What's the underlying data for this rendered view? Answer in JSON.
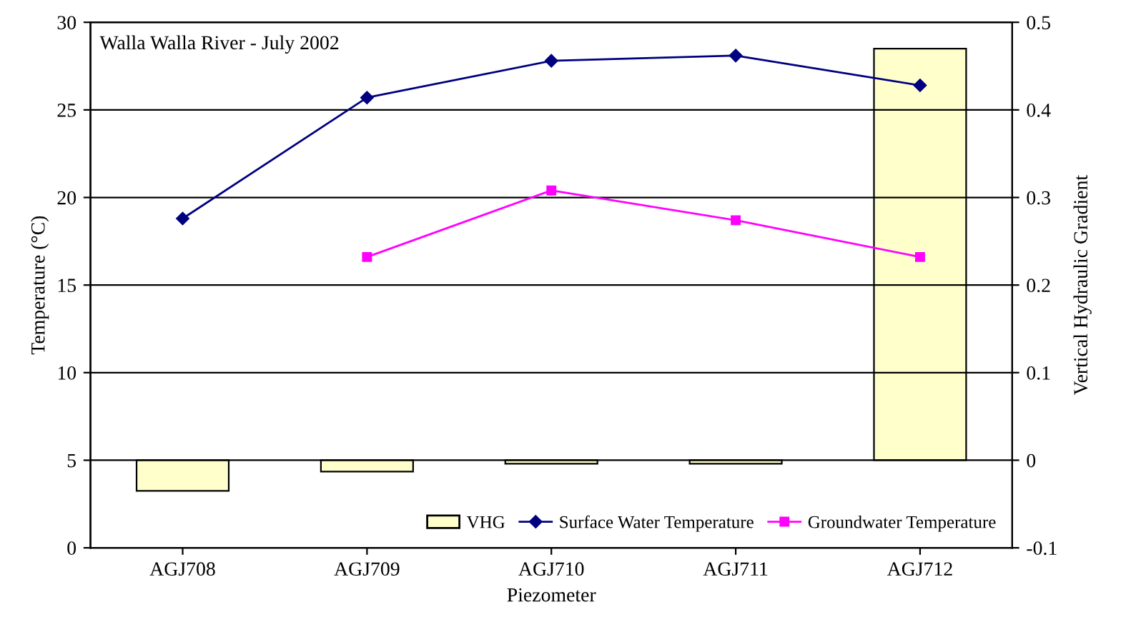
{
  "chart_data": {
    "type": "bar",
    "title": "Walla Walla River - July 2002",
    "xlabel": "Piezometer",
    "ylabel": "Temperature (°C)",
    "y2label": "Vertical Hydraulic Gradient",
    "categories": [
      "AGJ708",
      "AGJ709",
      "AGJ710",
      "AGJ711",
      "AGJ712"
    ],
    "series": [
      {
        "name": "VHG",
        "axis": "y2",
        "color": "#ffffcc",
        "values": [
          -0.035,
          -0.013,
          -0.004,
          -0.004,
          0.47
        ]
      },
      {
        "name": "Surface Water Temperature",
        "type": "line",
        "color": "#000080",
        "marker": "diamond",
        "values": [
          18.8,
          25.7,
          27.8,
          28.1,
          26.4
        ]
      },
      {
        "name": "Groundwater Temperature",
        "type": "line",
        "color": "#ff00ff",
        "marker": "square",
        "values": [
          null,
          16.6,
          20.4,
          18.7,
          16.6
        ]
      }
    ],
    "ylim": [
      0,
      30
    ],
    "yticks": [
      0,
      5,
      10,
      15,
      20,
      25,
      30
    ],
    "y2lim": [
      -0.1,
      0.5
    ],
    "y2ticks": [
      -0.1,
      0,
      0.1,
      0.2,
      0.3,
      0.4,
      0.5
    ],
    "grid": "y",
    "legend": "bottom right"
  }
}
